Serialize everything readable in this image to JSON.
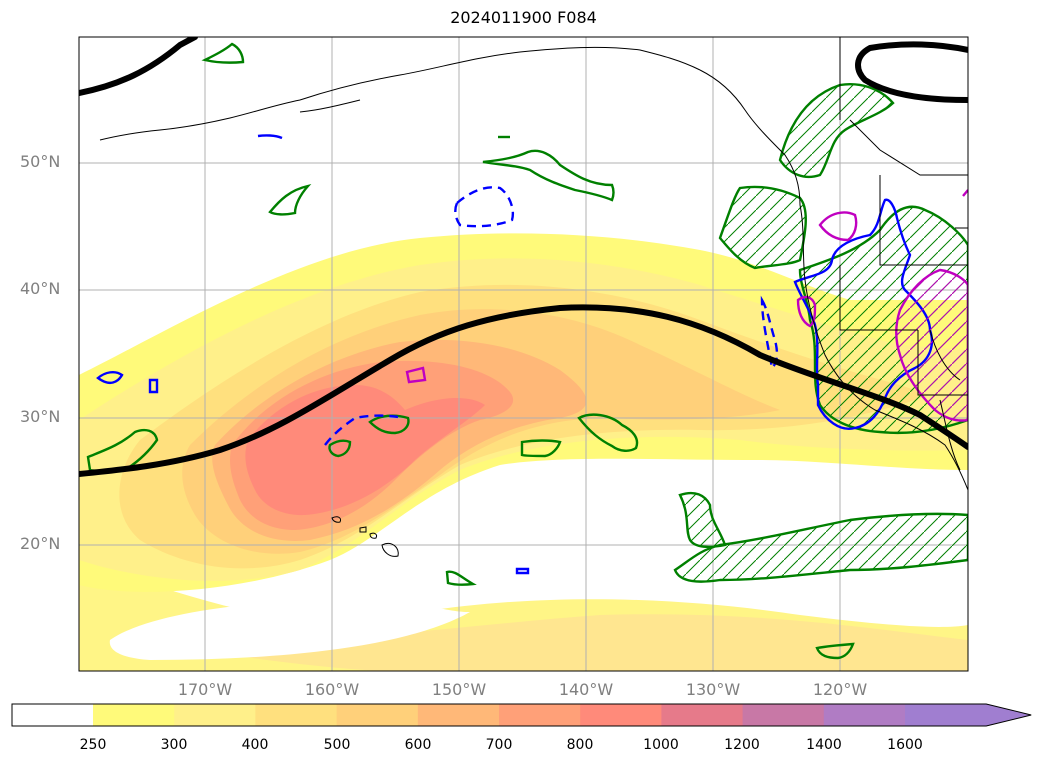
{
  "title": "2024011900 F084",
  "lat_labels": [
    "50°N",
    "40°N",
    "30°N",
    "20°N"
  ],
  "lon_labels": [
    "170°W",
    "160°W",
    "150°W",
    "140°W",
    "130°W",
    "120°W"
  ],
  "colorbar": {
    "ticks": [
      "250",
      "300",
      "400",
      "500",
      "600",
      "700",
      "800",
      "1000",
      "1200",
      "1400",
      "1600"
    ],
    "colors": [
      "#ffffff",
      "#fffa7a",
      "#fff08a",
      "#ffe07e",
      "#ffd07a",
      "#ffb878",
      "#ffa078",
      "#ff8a7a",
      "#e67a8a",
      "#c878a6",
      "#b07cc4",
      "#a07ed0"
    ],
    "extend": "max"
  },
  "colors": {
    "height_contour": "#000000",
    "green_outline": "#008000",
    "blue_outline": "#0000ff",
    "magenta_outline": "#c000c0",
    "grid": "#b0b0b0",
    "label_gray": "#808080"
  }
}
